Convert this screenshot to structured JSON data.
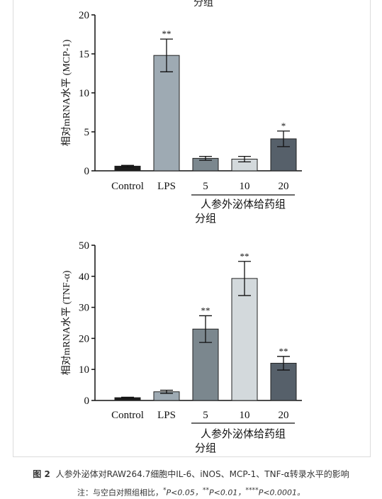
{
  "top_fragment": "分组",
  "chart_data": [
    {
      "type": "bar",
      "ylabel": "相对mRNA水平 (MCP-1)",
      "ylim": [
        0,
        20
      ],
      "yticks": [
        0,
        5,
        10,
        15,
        20
      ],
      "categories": [
        "Control",
        "LPS",
        "5",
        "10",
        "20"
      ],
      "values": [
        0.6,
        14.8,
        1.6,
        1.5,
        4.1
      ],
      "errors": [
        0.1,
        2.1,
        0.25,
        0.35,
        1.0
      ],
      "significance": [
        "",
        "**",
        "",
        "",
        "*"
      ],
      "colors": [
        "#1c1c1c",
        "#9eaab3",
        "#7b878e",
        "#d3d9dc",
        "#56606a"
      ],
      "group_label_1": "人参外泌体给药组",
      "group_label_2": "分组"
    },
    {
      "type": "bar",
      "ylabel": "相对mRNA水平 (TNF-α)",
      "ylim": [
        0,
        50
      ],
      "yticks": [
        0,
        10,
        20,
        30,
        40,
        50
      ],
      "categories": [
        "Control",
        "LPS",
        "5",
        "10",
        "20"
      ],
      "values": [
        0.9,
        2.8,
        23.0,
        39.3,
        12.0
      ],
      "errors": [
        0.15,
        0.5,
        4.3,
        5.5,
        2.2
      ],
      "significance": [
        "",
        "",
        "**",
        "**",
        "**"
      ],
      "colors": [
        "#1c1c1c",
        "#9eaab3",
        "#7b878e",
        "#d3d9dc",
        "#56606a"
      ],
      "group_label_1": "人参外泌体给药组",
      "group_label_2": "分组"
    }
  ],
  "caption": {
    "fig_label": "图 2",
    "text": "人参外泌体对RAW264.7细胞中IL-6、iNOS、MCP-1、TNF-α转录水平的影响"
  },
  "note": {
    "prefix": "注：与空白对照组相比，",
    "p1_mark": "*",
    "p1": "P<0.05，",
    "p2_mark": "**",
    "p2": "P<0.01，",
    "p3_mark": "****",
    "p3": "P<0.0001。"
  }
}
